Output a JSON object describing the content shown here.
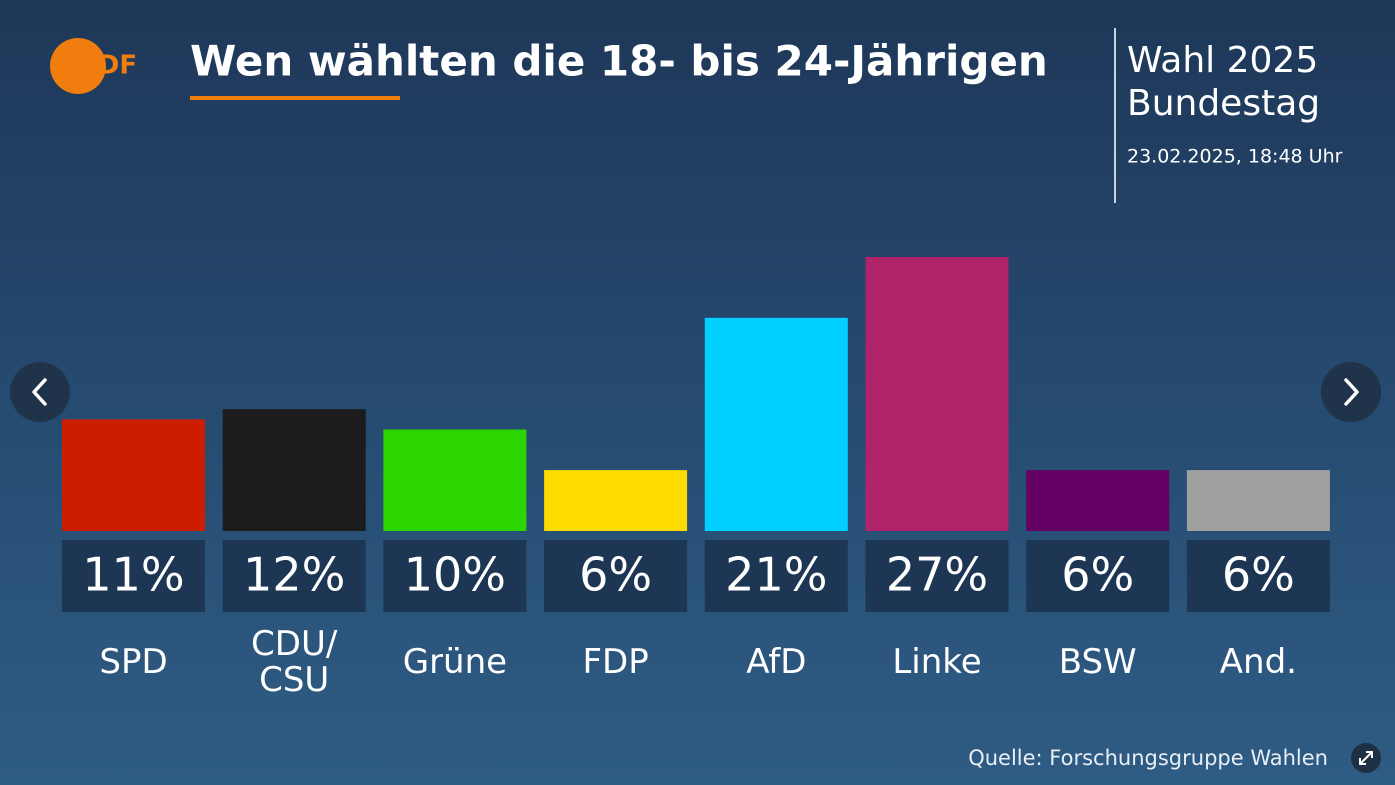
{
  "logo": "ZDF",
  "header": {
    "election": "Wahl 2025",
    "body": "Bundestag",
    "timestamp": "23.02.2025, 18:48 Uhr"
  },
  "chart_data": {
    "type": "bar",
    "title": "Wen wählten die 18- bis 24-Jährigen",
    "categories": [
      "SPD",
      "CDU/\nCSU",
      "Grüne",
      "FDP",
      "AfD",
      "Linke",
      "BSW",
      "And."
    ],
    "values": [
      11,
      12,
      10,
      6,
      21,
      27,
      6,
      6
    ],
    "value_labels": [
      "11%",
      "12%",
      "10%",
      "6%",
      "21%",
      "27%",
      "6%",
      "6%"
    ],
    "colors": [
      "#cc1d00",
      "#1c1c1c",
      "#2ad500",
      "#ffdc00",
      "#00cfff",
      "#b0226a",
      "#640064",
      "#a0a0a0"
    ]
  },
  "source": "Quelle: Forschungsgruppe Wahlen"
}
